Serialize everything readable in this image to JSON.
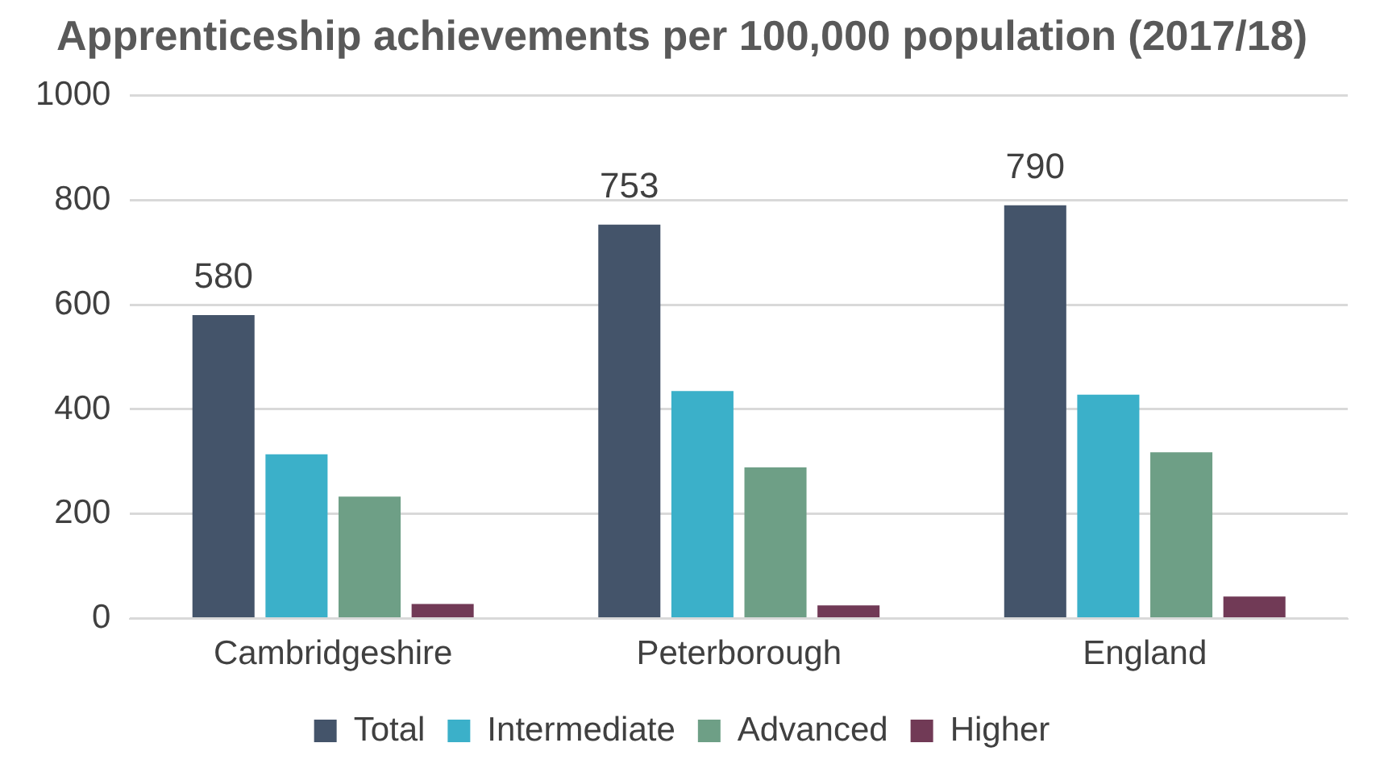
{
  "chart_data": {
    "type": "bar",
    "title": "Apprenticeship achievements per 100,000 population (2017/18)",
    "categories": [
      "Cambridgeshire",
      "Peterborough",
      "England"
    ],
    "series": [
      {
        "name": "Total",
        "color": "#44546a",
        "values": [
          580,
          753,
          790
        ],
        "value_labels": [
          "580",
          "753",
          "790"
        ]
      },
      {
        "name": "Intermediate",
        "color": "#3bb0c9",
        "values": [
          314,
          435,
          428
        ]
      },
      {
        "name": "Advanced",
        "color": "#6e9f86",
        "values": [
          233,
          289,
          318
        ]
      },
      {
        "name": "Higher",
        "color": "#713a56",
        "values": [
          28,
          25,
          42
        ]
      }
    ],
    "ylim": [
      0,
      1000
    ],
    "yticks": [
      0,
      200,
      400,
      600,
      800,
      1000
    ],
    "grid": "y",
    "legend": "bottom"
  }
}
